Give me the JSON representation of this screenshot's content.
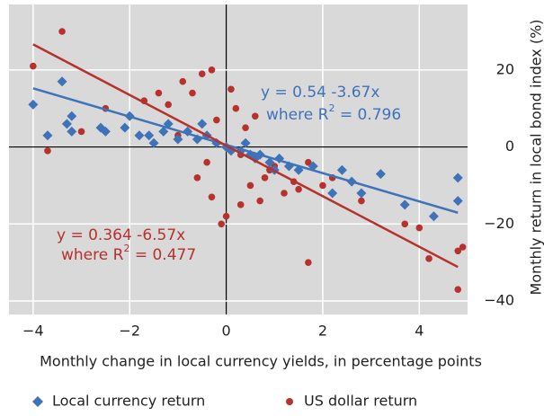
{
  "chart_data": {
    "type": "scatter",
    "xlabel": "Monthly change in local currency yields, in percentage points",
    "ylabel": "Monthly return in local bond index (%)",
    "xlim": [
      -4.5,
      5
    ],
    "ylim": [
      -43.5,
      37
    ],
    "xticks": [
      {
        "value": -4,
        "label": "−4"
      },
      {
        "value": -2,
        "label": "−2"
      },
      0,
      2,
      4
    ],
    "yticks": [
      20,
      0,
      {
        "value": -20,
        "label": "−20"
      },
      {
        "value": -40,
        "label": "−40"
      }
    ],
    "grid": true,
    "legend": "bottom",
    "series": [
      {
        "name": "Local currency return",
        "color": "#3e72b9",
        "marker": "diamond",
        "x": [
          -4,
          -3.4,
          -3.7,
          -3.3,
          -3.2,
          -3.2,
          -2.6,
          -2.5,
          -2.1,
          -2,
          -1.8,
          -1.6,
          -1.3,
          -1.2,
          -1,
          -0.8,
          -0.6,
          -0.4,
          -0.2,
          0,
          0.1,
          0.3,
          0.5,
          0.7,
          0.9,
          1.1,
          1.3,
          1.5,
          1.8,
          2.2,
          2.4,
          2.6,
          2.8,
          3.2,
          3.7,
          4.3,
          4.8,
          4.8,
          -0.5,
          0.4,
          0.6,
          1,
          -1.5
        ],
        "values": [
          11,
          17,
          3,
          6,
          4,
          8,
          5,
          4,
          5,
          8,
          3,
          3,
          4,
          6,
          2,
          4,
          2,
          3,
          1,
          0,
          -1,
          -1,
          -2,
          -2,
          -4,
          -3,
          -5,
          -6,
          -5,
          -12,
          -6,
          -9,
          -12,
          -7,
          -15,
          -18,
          -14,
          -8,
          6,
          1,
          -3,
          -6,
          1
        ],
        "fit": {
          "intercept": 0.54,
          "slope": -3.67,
          "x_range": [
            -4,
            4.8
          ]
        },
        "annotation": {
          "equation": "y = 0.54 -3.67x",
          "r2_prefix": "where R",
          "r2_sup": "2",
          "r2_suffix": " = 0.796"
        }
      },
      {
        "name": "US dollar return",
        "color": "#b7312d",
        "marker": "circle",
        "x": [
          -4,
          -3.4,
          -3.7,
          -3,
          -2.5,
          -2,
          -1.7,
          -1.4,
          -1.2,
          -0.9,
          -0.7,
          -0.5,
          -0.3,
          -0.3,
          -0.1,
          0,
          0.1,
          0.2,
          0.3,
          0.4,
          0.5,
          0.6,
          0.8,
          1,
          1.2,
          1.4,
          1.7,
          1.7,
          2,
          2.2,
          2.8,
          3.7,
          4,
          4.2,
          4.8,
          4.8,
          4.9,
          -0.6,
          -0.2,
          0.3,
          0.7,
          -1,
          0.9,
          1.5,
          -0.4
        ],
        "values": [
          21,
          30,
          -1,
          4,
          10,
          8,
          12,
          14,
          11,
          17,
          14,
          19,
          20,
          -13,
          -20,
          -18,
          15,
          10,
          -15,
          5,
          -10,
          8,
          -8,
          -5,
          -12,
          -9,
          -4,
          -30,
          -10,
          -8,
          -14,
          -20,
          -21,
          -29,
          -37,
          -27,
          -26,
          -8,
          7,
          -2,
          -14,
          3,
          -6,
          -11,
          -4
        ],
        "fit": {
          "intercept": 0.364,
          "slope": -6.57,
          "x_range": [
            -4,
            4.8
          ]
        },
        "annotation": {
          "equation": "y = 0.364 -6.57x",
          "r2_prefix": "where R",
          "r2_sup": "2",
          "r2_suffix": " = 0.477"
        }
      }
    ]
  }
}
